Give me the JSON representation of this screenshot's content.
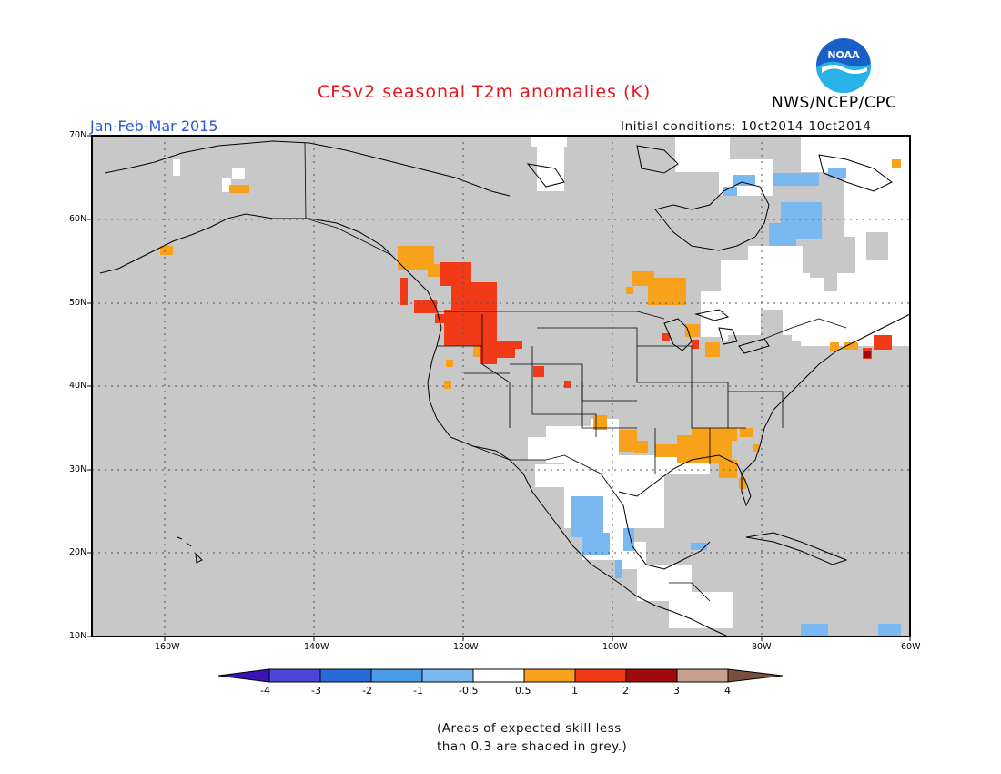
{
  "header": {
    "title": "CFSv2 seasonal T2m anomalies (K)",
    "season": "Jan-Feb-Mar 2015",
    "initial_conditions": "Initial conditions: 10ct2014-10ct2014",
    "agency": "NWS/NCEP/CPC",
    "logo_text": "NOAA"
  },
  "map": {
    "lat_labels": [
      "70N",
      "60N",
      "50N",
      "40N",
      "30N",
      "20N",
      "10N"
    ],
    "lon_labels": [
      "160W",
      "140W",
      "120W",
      "100W",
      "80W",
      "60W"
    ],
    "background_color": "#c8c8c8",
    "land_outline_color": "#000000"
  },
  "colorbar": {
    "labels": [
      "-4",
      "-3",
      "-2",
      "-1",
      "-0.5",
      "0.5",
      "1",
      "2",
      "3",
      "4"
    ],
    "colors": [
      "#3a14b8",
      "#4d44d8",
      "#2a6ad8",
      "#4b9ce8",
      "#7ab8f2",
      "#ffffff",
      "#f7a21a",
      "#f03a18",
      "#a00a0a",
      "#c9a08e",
      "#7a4f3e"
    ]
  },
  "footnote": {
    "line1": "(Areas of expected skill less",
    "line2": "than 0.3 are shaded in grey.)"
  }
}
